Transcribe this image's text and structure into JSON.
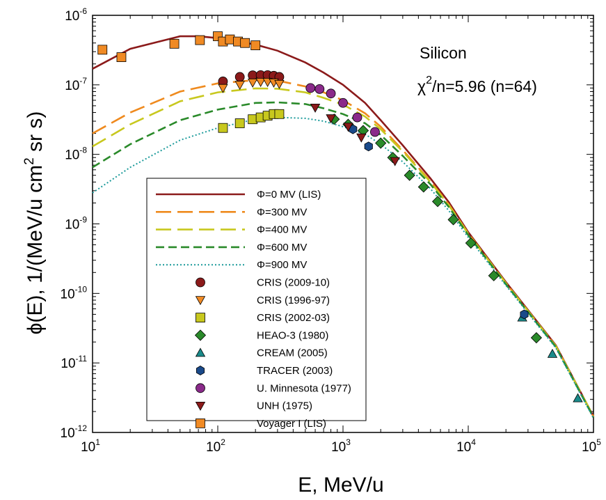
{
  "chart_data": {
    "type": "scatter",
    "xlabel": "E, MeV/u",
    "ylabel": {
      "main": "ϕ(E),  1/(MeV/u cm",
      "sup": "2",
      "tail": " sr s)"
    },
    "xscale": "log",
    "yscale": "log",
    "xlim": [
      10,
      100000
    ],
    "ylim": [
      1e-12,
      1e-06
    ],
    "xticks": [
      {
        "base": "10",
        "exp": "1"
      },
      {
        "base": "10",
        "exp": "2"
      },
      {
        "base": "10",
        "exp": "3"
      },
      {
        "base": "10",
        "exp": "4"
      },
      {
        "base": "10",
        "exp": "5"
      }
    ],
    "yticks": [
      {
        "base": "10",
        "exp": "-12"
      },
      {
        "base": "10",
        "exp": "-11"
      },
      {
        "base": "10",
        "exp": "-10"
      },
      {
        "base": "10",
        "exp": "-9"
      },
      {
        "base": "10",
        "exp": "-8"
      },
      {
        "base": "10",
        "exp": "-7"
      },
      {
        "base": "10",
        "exp": "-6"
      }
    ],
    "annotations": {
      "element": "Silicon",
      "chi_symbol": "χ",
      "chi_sup": "2",
      "chi_rest": "/n=5.96 (n=64)"
    },
    "legend_position": "lower-center",
    "grid": false,
    "curves": [
      {
        "name": "Φ=0 MV (LIS)",
        "color": "#8b1a1a",
        "dash": "solid",
        "points": [
          [
            10,
            1.7e-07
          ],
          [
            20,
            3.3e-07
          ],
          [
            50,
            5e-07
          ],
          [
            70,
            5e-07
          ],
          [
            100,
            4.7e-07
          ],
          [
            200,
            3.8e-07
          ],
          [
            300,
            3.1e-07
          ],
          [
            500,
            2.1e-07
          ],
          [
            700,
            1.5e-07
          ],
          [
            1000,
            1e-07
          ],
          [
            1500,
            5.5e-08
          ],
          [
            2000,
            3.1e-08
          ],
          [
            3000,
            1.35e-08
          ],
          [
            5000,
            4.5e-09
          ],
          [
            7000,
            2.05e-09
          ],
          [
            10000,
            7.6e-10
          ],
          [
            20000,
            1.45e-10
          ],
          [
            50000,
            1.8e-11
          ],
          [
            100000,
            1.7e-12
          ]
        ]
      },
      {
        "name": "Φ=300 MV",
        "color": "#ef8a1e",
        "dash": "long",
        "points": [
          [
            10,
            2e-08
          ],
          [
            20,
            4e-08
          ],
          [
            50,
            8e-08
          ],
          [
            100,
            1.05e-07
          ],
          [
            200,
            1.17e-07
          ],
          [
            300,
            1.15e-07
          ],
          [
            500,
            9.5e-08
          ],
          [
            700,
            7.8e-08
          ],
          [
            1000,
            6e-08
          ],
          [
            1500,
            3.9e-08
          ],
          [
            2000,
            2.5e-08
          ],
          [
            3000,
            1.15e-08
          ],
          [
            5000,
            4.1e-09
          ],
          [
            7000,
            1.9e-09
          ],
          [
            10000,
            7.3e-10
          ],
          [
            20000,
            1.4e-10
          ],
          [
            50000,
            1.75e-11
          ],
          [
            100000,
            1.7e-12
          ]
        ]
      },
      {
        "name": "Φ=400 MV",
        "color": "#c8c81e",
        "dash": "long",
        "points": [
          [
            10,
            1.3e-08
          ],
          [
            20,
            2.7e-08
          ],
          [
            50,
            5.8e-08
          ],
          [
            100,
            7.8e-08
          ],
          [
            200,
            8.9e-08
          ],
          [
            300,
            8.8e-08
          ],
          [
            500,
            7.8e-08
          ],
          [
            700,
            6.5e-08
          ],
          [
            1000,
            5.2e-08
          ],
          [
            1500,
            3.5e-08
          ],
          [
            2000,
            2.3e-08
          ],
          [
            3000,
            1.1e-08
          ],
          [
            5000,
            4e-09
          ],
          [
            7000,
            1.85e-09
          ],
          [
            10000,
            7.2e-10
          ],
          [
            20000,
            1.4e-10
          ],
          [
            50000,
            1.75e-11
          ],
          [
            100000,
            1.7e-12
          ]
        ]
      },
      {
        "name": "Φ=600 MV",
        "color": "#2a8a2a",
        "dash": "medium",
        "points": [
          [
            10,
            6.5e-09
          ],
          [
            20,
            1.4e-08
          ],
          [
            50,
            3.1e-08
          ],
          [
            100,
            4.4e-08
          ],
          [
            200,
            5.5e-08
          ],
          [
            300,
            5.6e-08
          ],
          [
            500,
            5.3e-08
          ],
          [
            700,
            4.6e-08
          ],
          [
            1000,
            3.8e-08
          ],
          [
            1500,
            2.8e-08
          ],
          [
            2000,
            1.9e-08
          ],
          [
            3000,
            9.5e-09
          ],
          [
            5000,
            3.7e-09
          ],
          [
            7000,
            1.75e-09
          ],
          [
            10000,
            6.9e-10
          ],
          [
            20000,
            1.35e-10
          ],
          [
            50000,
            1.7e-11
          ],
          [
            100000,
            1.65e-12
          ]
        ]
      },
      {
        "name": "Φ=900 MV",
        "color": "#1a9a9a",
        "dash": "dotted",
        "points": [
          [
            10,
            2.8e-09
          ],
          [
            20,
            6.5e-09
          ],
          [
            50,
            1.6e-08
          ],
          [
            100,
            2.4e-08
          ],
          [
            200,
            3.2e-08
          ],
          [
            300,
            3.4e-08
          ],
          [
            500,
            3.3e-08
          ],
          [
            700,
            3e-08
          ],
          [
            1000,
            2.5e-08
          ],
          [
            1500,
            1.95e-08
          ],
          [
            2000,
            1.4e-08
          ],
          [
            3000,
            7.8e-09
          ],
          [
            5000,
            3.2e-09
          ],
          [
            7000,
            1.55e-09
          ],
          [
            10000,
            6.4e-10
          ],
          [
            20000,
            1.3e-10
          ],
          [
            50000,
            1.65e-11
          ],
          [
            100000,
            1.6e-12
          ]
        ]
      }
    ],
    "datasets": [
      {
        "name": "CRIS (2009-10)",
        "marker": "circle",
        "color": "#8b1a1a",
        "points": [
          [
            110,
            1.12e-07
          ],
          [
            150,
            1.3e-07
          ],
          [
            190,
            1.37e-07
          ],
          [
            220,
            1.38e-07
          ],
          [
            250,
            1.38e-07
          ],
          [
            280,
            1.35e-07
          ],
          [
            310,
            1.3e-07
          ]
        ]
      },
      {
        "name": "CRIS (1996-97)",
        "marker": "triangle-down",
        "color": "#f08a24",
        "points": [
          [
            110,
            9e-08
          ],
          [
            150,
            1e-07
          ],
          [
            190,
            1.08e-07
          ],
          [
            220,
            1.1e-07
          ],
          [
            250,
            1.1e-07
          ],
          [
            280,
            1.08e-07
          ],
          [
            310,
            1.03e-07
          ]
        ]
      },
      {
        "name": "CRIS (2002-03)",
        "marker": "square",
        "color": "#c8c81e",
        "points": [
          [
            110,
            2.4e-08
          ],
          [
            150,
            2.8e-08
          ],
          [
            190,
            3.2e-08
          ],
          [
            220,
            3.4e-08
          ],
          [
            250,
            3.6e-08
          ],
          [
            280,
            3.8e-08
          ],
          [
            310,
            3.8e-08
          ]
        ]
      },
      {
        "name": "HEAO-3 (1980)",
        "marker": "diamond",
        "color": "#2a8a2a",
        "points": [
          [
            850,
            3.2e-08
          ],
          [
            1100,
            2.7e-08
          ],
          [
            1450,
            2.2e-08
          ],
          [
            2000,
            1.45e-08
          ],
          [
            2500,
            9e-09
          ],
          [
            3400,
            5e-09
          ],
          [
            4400,
            3.4e-09
          ],
          [
            5700,
            2.1e-09
          ],
          [
            7600,
            1.15e-09
          ],
          [
            10500,
            5.3e-10
          ],
          [
            16000,
            1.8e-10
          ],
          [
            35000,
            2.3e-11
          ]
        ]
      },
      {
        "name": "CREAM (2005)",
        "marker": "triangle-up",
        "color": "#1a8a8a",
        "points": [
          [
            27000,
            4.5e-11
          ],
          [
            47000,
            1.35e-11
          ],
          [
            75000,
            3.1e-12
          ]
        ]
      },
      {
        "name": "TRACER (2003)",
        "marker": "hexagon",
        "color": "#1a4a8a",
        "points": [
          [
            1200,
            2.3e-08
          ],
          [
            1600,
            1.3e-08
          ],
          [
            28000,
            5e-11
          ]
        ]
      },
      {
        "name": "U. Minnesota (1977)",
        "marker": "circle",
        "color": "#8a2a8a",
        "points": [
          [
            550,
            9e-08
          ],
          [
            650,
            8.7e-08
          ],
          [
            800,
            7.5e-08
          ],
          [
            1000,
            5.5e-08
          ],
          [
            1300,
            3.4e-08
          ],
          [
            1800,
            2.1e-08
          ]
        ]
      },
      {
        "name": "UNH (1975)",
        "marker": "triangle-down",
        "color": "#8b1a1a",
        "points": [
          [
            600,
            4.7e-08
          ],
          [
            800,
            3.3e-08
          ],
          [
            1100,
            2.5e-08
          ],
          [
            1400,
            1.75e-08
          ],
          [
            2600,
            8e-09
          ]
        ]
      },
      {
        "name": "Voyager I (LIS)",
        "marker": "square",
        "color": "#f08a24",
        "points": [
          [
            12,
            3.2e-07
          ],
          [
            17,
            2.5e-07
          ],
          [
            45,
            3.9e-07
          ],
          [
            72,
            4.4e-07
          ],
          [
            100,
            5e-07
          ],
          [
            110,
            4.2e-07
          ],
          [
            125,
            4.5e-07
          ],
          [
            145,
            4.2e-07
          ],
          [
            165,
            4e-07
          ],
          [
            200,
            3.7e-07
          ]
        ]
      }
    ]
  }
}
